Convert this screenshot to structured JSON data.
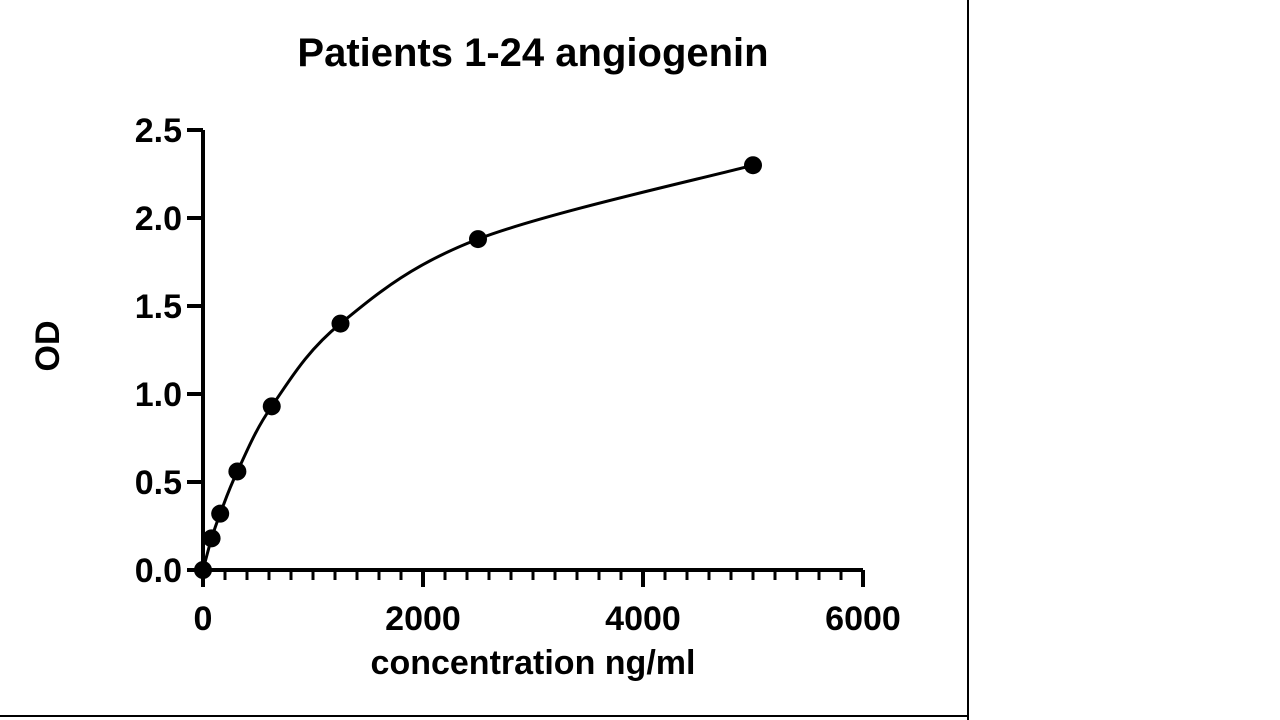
{
  "page": {
    "background": "#ffffff",
    "edge_color": "#000000"
  },
  "chart_data": {
    "type": "scatter",
    "curve_style": "smooth line through points (fitted standard curve)",
    "title": "Patients 1-24 angiogenin",
    "xlabel": "concentration ng/ml",
    "ylabel": "OD",
    "x": [
      0,
      78.125,
      156.25,
      312.5,
      625,
      1250,
      2500,
      5000
    ],
    "y": [
      0.0,
      0.18,
      0.32,
      0.56,
      0.93,
      1.4,
      1.88,
      2.3
    ],
    "xlim": [
      0,
      6000
    ],
    "ylim": [
      0,
      2.5
    ],
    "x_major_ticks": [
      0,
      2000,
      4000,
      6000
    ],
    "x_minor_tick_step": 200,
    "y_major_ticks": [
      0,
      0.5,
      1.0,
      1.5,
      2.0,
      2.5
    ],
    "y_tick_decimals": 1,
    "grid": false,
    "legend": null,
    "marker_shape": "filled-circle",
    "marker_color": "#000000",
    "line_color": "#000000",
    "text_color": "#000000",
    "background": "#ffffff"
  }
}
